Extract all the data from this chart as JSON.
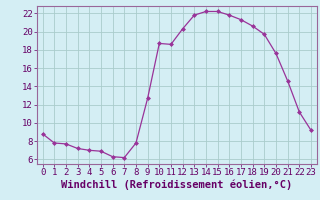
{
  "x": [
    0,
    1,
    2,
    3,
    4,
    5,
    6,
    7,
    8,
    9,
    10,
    11,
    12,
    13,
    14,
    15,
    16,
    17,
    18,
    19,
    20,
    21,
    22,
    23
  ],
  "y": [
    8.8,
    7.8,
    7.7,
    7.2,
    7.0,
    6.9,
    6.3,
    6.2,
    7.8,
    12.7,
    18.7,
    18.6,
    20.3,
    21.8,
    22.2,
    22.2,
    21.8,
    21.3,
    20.6,
    19.7,
    17.6,
    14.6,
    11.2,
    9.2
  ],
  "line_color": "#993399",
  "marker_color": "#993399",
  "bg_color": "#d4eef4",
  "grid_color": "#aacccc",
  "xlabel": "Windchill (Refroidissement éolien,°C)",
  "xlabel_fontsize": 7.5,
  "tick_fontsize": 6.5,
  "axis_label_color": "#660066",
  "xlim": [
    -0.5,
    23.5
  ],
  "ylim": [
    5.5,
    22.8
  ],
  "yticks": [
    6,
    8,
    10,
    12,
    14,
    16,
    18,
    20,
    22
  ],
  "xticks": [
    0,
    1,
    2,
    3,
    4,
    5,
    6,
    7,
    8,
    9,
    10,
    11,
    12,
    13,
    14,
    15,
    16,
    17,
    18,
    19,
    20,
    21,
    22,
    23
  ]
}
